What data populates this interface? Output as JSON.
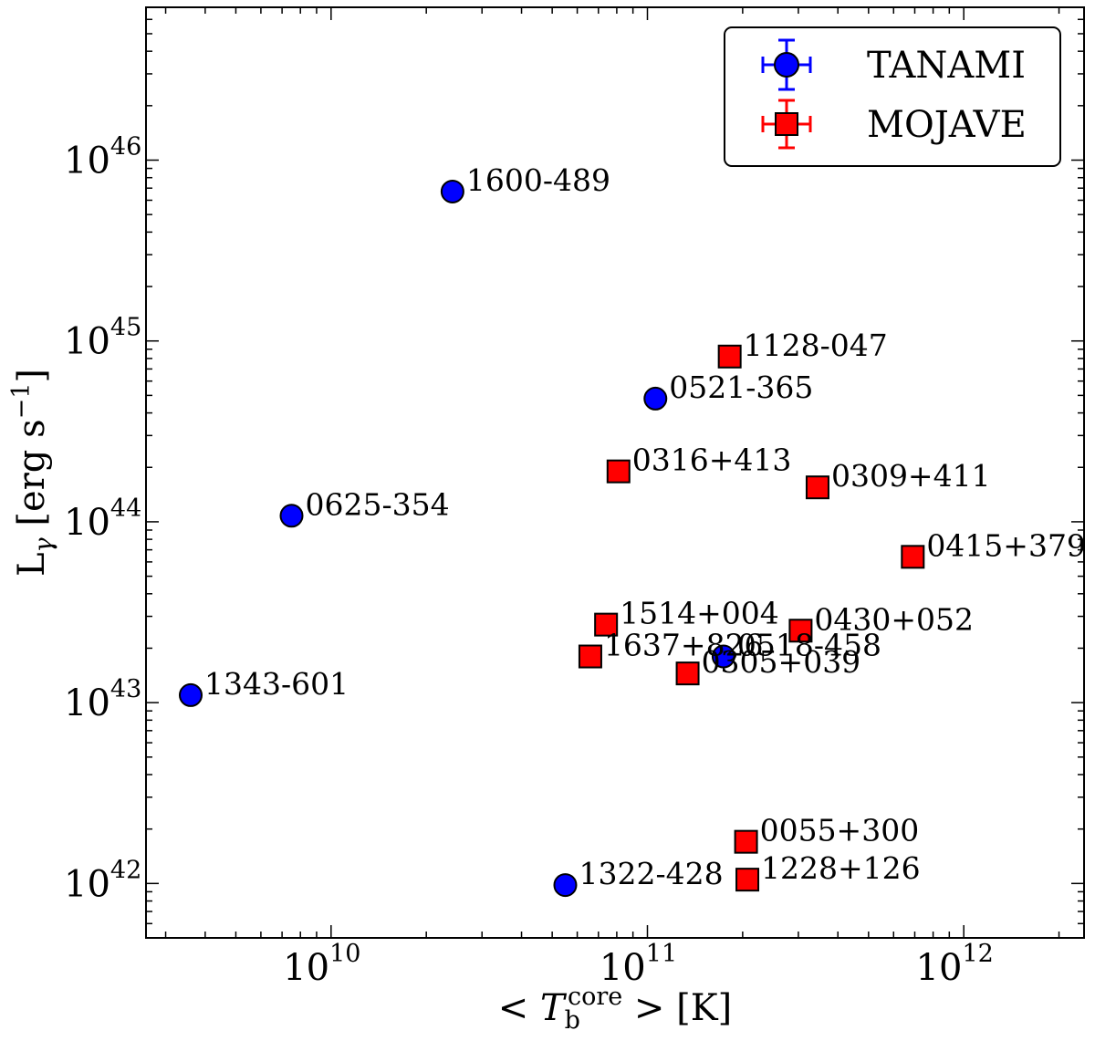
{
  "chart_data": {
    "type": "scatter",
    "title": "",
    "xlabel": {
      "prefix": "< ",
      "symbol": "T",
      "sub": "b",
      "sup": "core",
      "suffix": " > [K]"
    },
    "ylabel": {
      "symbol": "L",
      "sub": "γ",
      "unit": " [erg s",
      "unit_sup": "−1",
      "unit_close": "]"
    },
    "xscale": "log",
    "yscale": "log",
    "xlim": [
      2600000000.0,
      2400000000000.0
    ],
    "ylim": [
      5e+41,
      7e+46
    ],
    "xticks": [
      {
        "base": "10",
        "exp": "10",
        "value": 10000000000.0
      },
      {
        "base": "10",
        "exp": "11",
        "value": 100000000000.0
      },
      {
        "base": "10",
        "exp": "12",
        "value": 1000000000000.0
      }
    ],
    "yticks": [
      {
        "base": "10",
        "exp": "42",
        "value": 1e+42
      },
      {
        "base": "10",
        "exp": "43",
        "value": 1e+43
      },
      {
        "base": "10",
        "exp": "44",
        "value": 1e+44
      },
      {
        "base": "10",
        "exp": "45",
        "value": 1e+45
      },
      {
        "base": "10",
        "exp": "46",
        "value": 1e+46
      }
    ],
    "legend": {
      "position": "top-right",
      "entries": [
        "TANAMI",
        "MOJAVE"
      ]
    },
    "series": [
      {
        "name": "TANAMI",
        "marker": "circle",
        "color": "#0000ff",
        "points": [
          {
            "label": "1600-489",
            "x": 24200000000.0,
            "y": 6.7e+45
          },
          {
            "label": "0521-365",
            "x": 106000000000.0,
            "y": 4.8e+44
          },
          {
            "label": "0625-354",
            "x": 7500000000.0,
            "y": 1.08e+44
          },
          {
            "label": "1343-601",
            "x": 3600000000.0,
            "y": 1.1e+43
          },
          {
            "label": "0518-458",
            "x": 174000000000.0,
            "y": 1.8e+43
          },
          {
            "label": "1322-428",
            "x": 55000000000.0,
            "y": 9.8e+41
          }
        ]
      },
      {
        "name": "MOJAVE",
        "marker": "square",
        "color": "#ff0000",
        "points": [
          {
            "label": "1128-047",
            "x": 182000000000.0,
            "y": 8.2e+44
          },
          {
            "label": "0316+413",
            "x": 81000000000.0,
            "y": 1.9e+44
          },
          {
            "label": "0309+411",
            "x": 345000000000.0,
            "y": 1.55e+44
          },
          {
            "label": "0415+379",
            "x": 690000000000.0,
            "y": 6.4e+43
          },
          {
            "label": "1514+004",
            "x": 74000000000.0,
            "y": 2.7e+43
          },
          {
            "label": "0430+052",
            "x": 305000000000.0,
            "y": 2.5e+43
          },
          {
            "label": "1637+826",
            "x": 66000000000.0,
            "y": 1.8e+43
          },
          {
            "label": "0305+039",
            "x": 134000000000.0,
            "y": 1.45e+43
          },
          {
            "label": "0055+300",
            "x": 205000000000.0,
            "y": 1.7e+42
          },
          {
            "label": "1228+126",
            "x": 207000000000.0,
            "y": 1.05e+42
          }
        ]
      }
    ]
  }
}
